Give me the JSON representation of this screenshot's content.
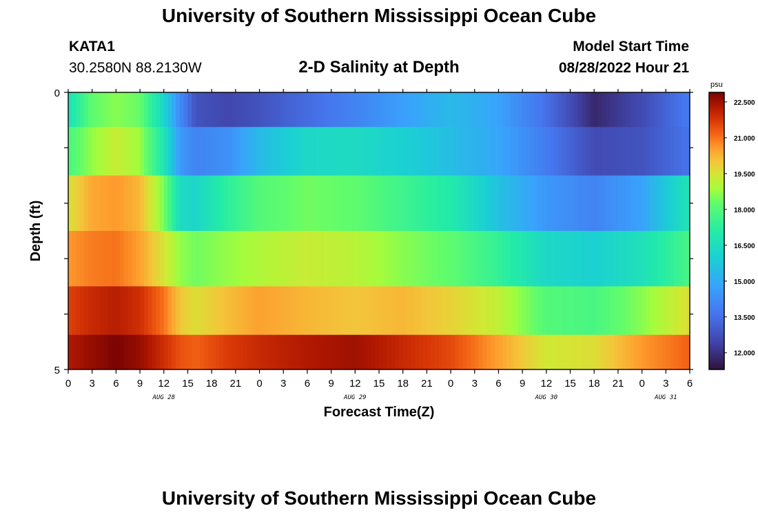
{
  "header": {
    "title": "University of Southern Mississippi Ocean Cube",
    "station": "KATA1",
    "coords": "30.2580N  88.2130W",
    "subtitle": "2-D Salinity at Depth",
    "model_label": "Model Start Time",
    "model_time": "08/28/2022 Hour 21"
  },
  "footer": {
    "title": "University of Southern Mississippi Ocean Cube"
  },
  "chart_data": {
    "type": "heatmap",
    "title": "2-D Salinity at Depth",
    "xlabel": "Forecast Time(Z)",
    "ylabel": "Depth (ft)",
    "xlim": [
      0,
      78
    ],
    "ylim": [
      0,
      5
    ],
    "x_tick_labels": [
      "0",
      "3",
      "6",
      "9",
      "12",
      "15",
      "18",
      "21",
      "0",
      "3",
      "6",
      "9",
      "12",
      "15",
      "18",
      "21",
      "0",
      "3",
      "6",
      "9",
      "12",
      "15",
      "18",
      "21",
      "0",
      "3",
      "6"
    ],
    "y_tick_labels": [
      "0",
      "5"
    ],
    "day_labels": [
      {
        "label": "AUG 28",
        "hour": 12
      },
      {
        "label": "AUG 29",
        "hour": 36
      },
      {
        "label": "AUG 30",
        "hour": 60
      },
      {
        "label": "AUG 31",
        "hour": 75
      }
    ],
    "colorbar": {
      "unit": "psu",
      "min": 11.3,
      "max": 22.9,
      "ticks": [
        "22.500",
        "21.000",
        "19.500",
        "18.000",
        "16.500",
        "15.000",
        "13.500",
        "12.000"
      ],
      "tick_values": [
        22.5,
        21.0,
        19.5,
        18.0,
        16.5,
        15.0,
        13.5,
        12.0
      ]
    },
    "rows": [
      {
        "depth": 0.25,
        "hours": [
          0,
          3,
          6,
          9,
          12,
          14,
          16,
          20,
          24,
          30,
          36,
          42,
          48,
          54,
          60,
          66,
          72,
          78
        ],
        "values": [
          16.6,
          18.2,
          18.6,
          18.3,
          16.2,
          14.2,
          12.8,
          12.5,
          12.8,
          13.4,
          14.0,
          14.7,
          15.4,
          14.8,
          13.5,
          11.8,
          12.6,
          13.8
        ]
      },
      {
        "depth": 1.0,
        "hours": [
          0,
          3,
          6,
          9,
          12,
          14,
          16,
          20,
          24,
          30,
          36,
          42,
          48,
          54,
          60,
          66,
          72,
          78
        ],
        "values": [
          17.8,
          18.7,
          19.3,
          18.8,
          16.8,
          14.6,
          14.0,
          14.3,
          15.4,
          16.3,
          16.4,
          16.0,
          15.5,
          14.9,
          13.8,
          12.6,
          12.8,
          13.6
        ]
      },
      {
        "depth": 2.0,
        "hours": [
          0,
          3,
          6,
          9,
          12,
          14,
          16,
          20,
          24,
          30,
          36,
          42,
          48,
          54,
          60,
          66,
          72,
          78
        ],
        "values": [
          19.5,
          20.4,
          20.6,
          20.2,
          18.5,
          16.4,
          16.2,
          17.3,
          18.0,
          18.4,
          18.2,
          17.6,
          17.0,
          15.6,
          14.5,
          14.0,
          14.8,
          16.8
        ]
      },
      {
        "depth": 3.0,
        "hours": [
          0,
          3,
          6,
          9,
          12,
          14,
          16,
          20,
          24,
          30,
          36,
          42,
          48,
          54,
          60,
          66,
          72,
          78
        ],
        "values": [
          20.6,
          20.9,
          21.0,
          20.5,
          19.5,
          18.7,
          18.4,
          18.7,
          19.0,
          19.3,
          19.1,
          18.6,
          18.2,
          17.4,
          16.3,
          16.0,
          16.6,
          17.8
        ]
      },
      {
        "depth": 4.0,
        "hours": [
          0,
          3,
          6,
          9,
          12,
          14,
          16,
          20,
          24,
          30,
          36,
          42,
          48,
          54,
          60,
          66,
          72,
          78
        ],
        "values": [
          21.6,
          22.0,
          22.2,
          21.9,
          21.0,
          20.0,
          19.6,
          20.1,
          20.5,
          20.2,
          20.0,
          20.2,
          19.8,
          19.2,
          18.0,
          17.8,
          18.6,
          19.6
        ]
      },
      {
        "depth": 4.75,
        "hours": [
          0,
          3,
          6,
          9,
          12,
          14,
          16,
          20,
          24,
          30,
          36,
          42,
          48,
          54,
          60,
          66,
          72,
          78
        ],
        "values": [
          22.3,
          22.6,
          22.9,
          22.6,
          21.9,
          21.4,
          21.2,
          21.7,
          22.0,
          22.3,
          22.5,
          22.0,
          21.5,
          20.5,
          19.4,
          19.6,
          20.6,
          21.2
        ]
      }
    ]
  }
}
